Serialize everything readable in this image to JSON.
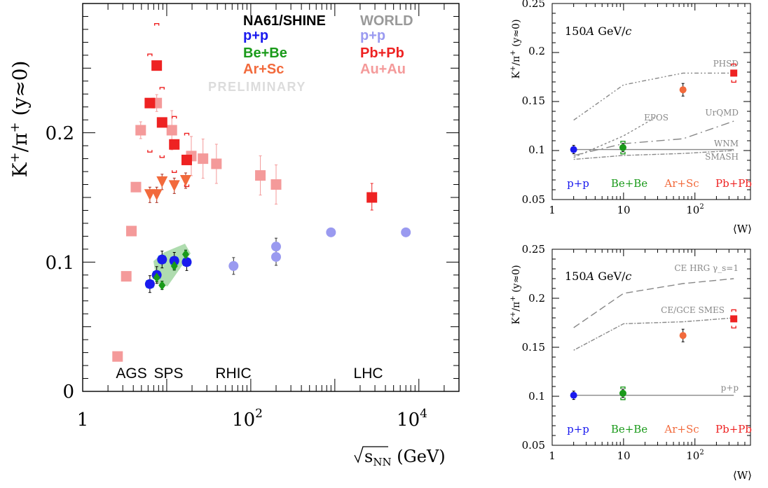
{
  "chart_data": [
    {
      "type": "scatter",
      "xlabel": "√s_NN (GeV)",
      "ylabel": "K⁺/π⁺ (y≈0)",
      "xscale": "log",
      "xlim": [
        1,
        30000
      ],
      "ylim": [
        0,
        0.3
      ],
      "x_ticks": [
        "1",
        "10²",
        "10⁴"
      ],
      "y_ticks": [
        "0",
        "0.1",
        "0.2"
      ],
      "legend_headers": {
        "na61": "NA61/SHINE",
        "world": "WORLD"
      },
      "watermark": "PRELIMINARY",
      "energy_labels": [
        {
          "text": "AGS",
          "x": 3.8
        },
        {
          "text": "SPS",
          "x": 10.5
        },
        {
          "text": "RHIC",
          "x": 62
        },
        {
          "text": "LHC",
          "x": 2500
        }
      ],
      "colors": {
        "pp_na61": "#1a1aee",
        "bebe_na61": "#1a9a1a",
        "arsc_na61": "#f26a3c",
        "pp_world": "#9a9af0",
        "pbpb_world": "#ee2222",
        "auau_world": "#f49a9a",
        "arsc_err": "#aa2a1a"
      },
      "series": [
        {
          "name": "p+p",
          "group": "NA61/SHINE",
          "marker": "circle",
          "color": "#1a1aee",
          "points": [
            {
              "x": 6.3,
              "y": 0.083
            },
            {
              "x": 7.6,
              "y": 0.09
            },
            {
              "x": 8.8,
              "y": 0.102
            },
            {
              "x": 12.3,
              "y": 0.101
            },
            {
              "x": 17.3,
              "y": 0.1
            }
          ]
        },
        {
          "name": "Be+Be",
          "group": "NA61/SHINE",
          "marker": "diamond",
          "color": "#1a9a1a",
          "points": [
            {
              "x": 7.6,
              "y": 0.088
            },
            {
              "x": 8.8,
              "y": 0.082
            },
            {
              "x": 12.3,
              "y": 0.097
            },
            {
              "x": 16.8,
              "y": 0.106
            }
          ]
        },
        {
          "name": "Ar+Sc",
          "group": "NA61/SHINE",
          "marker": "triangle-down",
          "color": "#f26a3c",
          "points": [
            {
              "x": 6.3,
              "y": 0.152
            },
            {
              "x": 7.6,
              "y": 0.152
            },
            {
              "x": 8.8,
              "y": 0.162
            },
            {
              "x": 12.3,
              "y": 0.159
            },
            {
              "x": 16.8,
              "y": 0.163
            }
          ]
        },
        {
          "name": "p+p",
          "group": "WORLD",
          "marker": "circle",
          "color": "#9a9af0",
          "points": [
            {
              "x": 62.4,
              "y": 0.097
            },
            {
              "x": 200,
              "y": 0.104
            },
            {
              "x": 200,
              "y": 0.112
            },
            {
              "x": 900,
              "y": 0.123
            },
            {
              "x": 7000,
              "y": 0.123
            }
          ]
        },
        {
          "name": "Pb+Pb",
          "group": "WORLD",
          "marker": "square",
          "color": "#ee2222",
          "points": [
            {
              "x": 6.3,
              "y": 0.223
            },
            {
              "x": 7.6,
              "y": 0.252
            },
            {
              "x": 8.8,
              "y": 0.208
            },
            {
              "x": 12.3,
              "y": 0.191
            },
            {
              "x": 17.3,
              "y": 0.179
            },
            {
              "x": 2760,
              "y": 0.15
            }
          ]
        },
        {
          "name": "Au+Au",
          "group": "WORLD",
          "marker": "square",
          "color": "#f49a9a",
          "points": [
            {
              "x": 2.6,
              "y": 0.027
            },
            {
              "x": 3.3,
              "y": 0.089
            },
            {
              "x": 3.8,
              "y": 0.124
            },
            {
              "x": 4.3,
              "y": 0.158
            },
            {
              "x": 4.9,
              "y": 0.202
            },
            {
              "x": 7.6,
              "y": 0.223
            },
            {
              "x": 11.5,
              "y": 0.202
            },
            {
              "x": 19.6,
              "y": 0.182
            },
            {
              "x": 27,
              "y": 0.18
            },
            {
              "x": 39,
              "y": 0.176
            },
            {
              "x": 130,
              "y": 0.167
            },
            {
              "x": 200,
              "y": 0.16
            }
          ]
        }
      ]
    },
    {
      "type": "scatter",
      "annotation": "150A GeV/c",
      "ylabel": "K⁺/π⁺ (y≈0)",
      "xlabel": "⟨W⟩",
      "xscale": "log",
      "xlim": [
        1,
        600
      ],
      "ylim": [
        0.05,
        0.25
      ],
      "x_ticks": [
        "1",
        "10",
        "10²"
      ],
      "y_ticks": [
        "0.05",
        "0.1",
        "0.15",
        "0.2",
        "0.25"
      ],
      "systems": [
        {
          "label": "p+p",
          "x": 2,
          "y": 0.101,
          "color": "#1a1aee"
        },
        {
          "label": "Be+Be",
          "x": 9.8,
          "y": 0.103,
          "color": "#1a9a1a"
        },
        {
          "label": "Ar+Sc",
          "x": 68,
          "y": 0.162,
          "color": "#f26a3c"
        },
        {
          "label": "Pb+Pb",
          "x": 350,
          "y": 0.179,
          "color": "#ee2222"
        }
      ],
      "models": [
        {
          "name": "PHSD",
          "points": [
            {
              "x": 2,
              "y": 0.131
            },
            {
              "x": 10,
              "y": 0.167
            },
            {
              "x": 68,
              "y": 0.179
            },
            {
              "x": 350,
              "y": 0.179
            }
          ]
        },
        {
          "name": "EPOS",
          "points": [
            {
              "x": 2,
              "y": 0.093
            },
            {
              "x": 10,
              "y": 0.115
            },
            {
              "x": 30,
              "y": 0.135
            }
          ]
        },
        {
          "name": "UrQMD",
          "points": [
            {
              "x": 2,
              "y": 0.095
            },
            {
              "x": 10,
              "y": 0.107
            },
            {
              "x": 68,
              "y": 0.112
            },
            {
              "x": 350,
              "y": 0.13
            }
          ]
        },
        {
          "name": "WNM",
          "points": [
            {
              "x": 2,
              "y": 0.101
            },
            {
              "x": 350,
              "y": 0.101
            }
          ]
        },
        {
          "name": "SMASH",
          "points": [
            {
              "x": 2,
              "y": 0.091
            },
            {
              "x": 10,
              "y": 0.095
            },
            {
              "x": 68,
              "y": 0.097
            },
            {
              "x": 350,
              "y": 0.1
            }
          ]
        }
      ]
    },
    {
      "type": "scatter",
      "annotation": "150A GeV/c",
      "ylabel": "K⁺/π⁺ (y≈0)",
      "xlabel": "⟨W⟩",
      "xscale": "log",
      "xlim": [
        1,
        600
      ],
      "ylim": [
        0.05,
        0.25
      ],
      "x_ticks": [
        "1",
        "10",
        "10²"
      ],
      "y_ticks": [
        "0.05",
        "0.1",
        "0.15",
        "0.2",
        "0.25"
      ],
      "systems": [
        {
          "label": "p+p",
          "x": 2,
          "y": 0.101,
          "color": "#1a1aee"
        },
        {
          "label": "Be+Be",
          "x": 9.8,
          "y": 0.103,
          "color": "#1a9a1a"
        },
        {
          "label": "Ar+Sc",
          "x": 68,
          "y": 0.162,
          "color": "#f26a3c"
        },
        {
          "label": "Pb+Pb",
          "x": 350,
          "y": 0.179,
          "color": "#ee2222"
        }
      ],
      "models": [
        {
          "name": "CE HRG γ_s=1",
          "points": [
            {
              "x": 2,
              "y": 0.17
            },
            {
              "x": 10,
              "y": 0.205
            },
            {
              "x": 68,
              "y": 0.215
            },
            {
              "x": 350,
              "y": 0.22
            }
          ]
        },
        {
          "name": "CE/GCE SMES",
          "points": [
            {
              "x": 2,
              "y": 0.147
            },
            {
              "x": 10,
              "y": 0.174
            },
            {
              "x": 68,
              "y": 0.176
            },
            {
              "x": 350,
              "y": 0.18
            }
          ]
        },
        {
          "name": "p+p",
          "points": [
            {
              "x": 2,
              "y": 0.101
            },
            {
              "x": 350,
              "y": 0.101
            }
          ]
        }
      ]
    }
  ]
}
